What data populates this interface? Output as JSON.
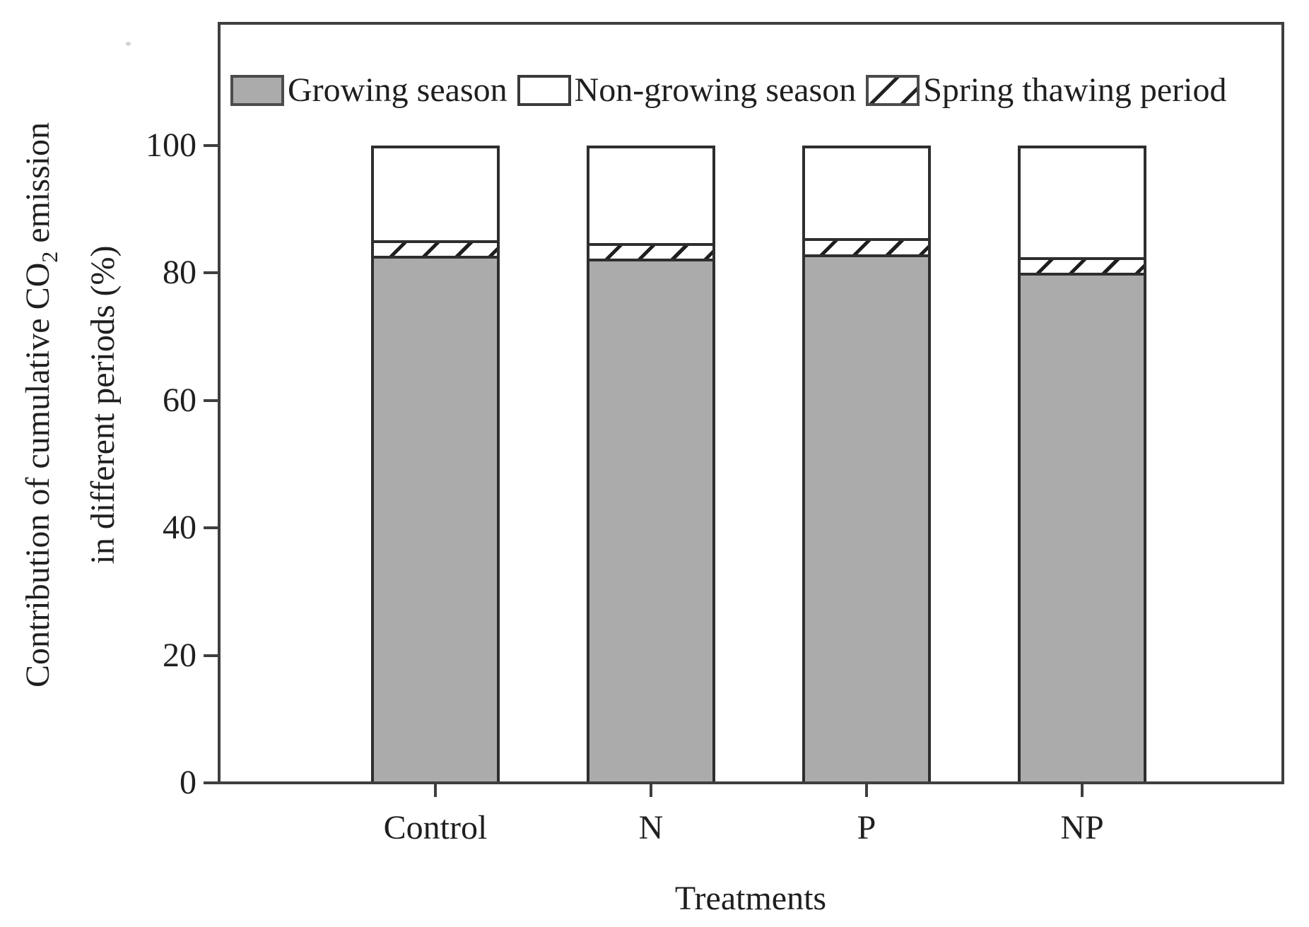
{
  "chart_data": {
    "type": "bar",
    "stacked": true,
    "title": "",
    "xlabel": "Treatments",
    "ylabel": "Contribution of cumulative CO2 emission in different periods (%)",
    "categories": [
      "Control",
      "N",
      "P",
      "NP"
    ],
    "series": [
      {
        "name": "Growing season",
        "pattern": "solid-gray",
        "values": [
          82.6,
          82.2,
          82.9,
          80.0
        ]
      },
      {
        "name": "Spring thawing period",
        "pattern": "diagonal-hatch",
        "values": [
          2.9,
          2.9,
          3.0,
          2.9
        ]
      },
      {
        "name": "Non-growing season",
        "pattern": "white",
        "values": [
          14.5,
          14.9,
          14.1,
          17.1
        ]
      }
    ],
    "stack_order_bottom_to_top": [
      "Growing season",
      "Spring thawing period",
      "Non-growing season"
    ],
    "y_ticks": [
      0,
      20,
      40,
      60,
      80,
      100
    ],
    "ylim": [
      0,
      119
    ],
    "grid": false,
    "legend_position": "top-inside-horizontal"
  },
  "legend_items": [
    {
      "label": "Growing season",
      "swatch": "gray"
    },
    {
      "label": "Non-growing season",
      "swatch": "white"
    },
    {
      "label": "Spring thawing period",
      "swatch": "hatch"
    }
  ],
  "axis_labels": {
    "ylabel_line1_pre": "Contribution of cumulative CO",
    "ylabel_sub": "2",
    "ylabel_line1_post": " emission",
    "ylabel_line2": "in different periods (%)",
    "xlabel": "Treatments"
  },
  "colors": {
    "bar_gray": "#ababab",
    "bar_border": "#2e2e2e",
    "frame": "#3f3f3f",
    "text": "#1f1f1f",
    "background": "#ffffff"
  }
}
